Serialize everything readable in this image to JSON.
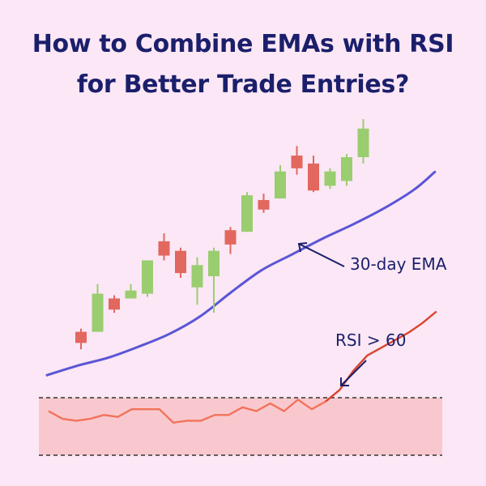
{
  "title": {
    "line1": "How to Combine EMAs with RSI",
    "line2": "for Better Trade Entries?"
  },
  "colors": {
    "background": "#fbe7f5",
    "title": "#1b1f6b",
    "bullish": "#9acd6f",
    "bearish": "#e2675e",
    "ema": "#5b55d6",
    "rsi_below": "#f2735a",
    "rsi_above": "#d9442c",
    "rsi_band": "#f9c8cf",
    "threshold_line": "#333333",
    "annotation": "#1b1f6b"
  },
  "annotations": {
    "ema_label": "30-day EMA",
    "rsi_label": "RSI > 60"
  },
  "chart_data": [
    {
      "type": "candlestick",
      "candles": [
        {
          "open": 16,
          "close": 9,
          "high": 18,
          "low": 5
        },
        {
          "open": 16,
          "close": 40,
          "high": 46,
          "low": 16
        },
        {
          "open": 37,
          "close": 30,
          "high": 39,
          "low": 28
        },
        {
          "open": 37,
          "close": 42,
          "high": 46,
          "low": 37
        },
        {
          "open": 40,
          "close": 61,
          "high": 61,
          "low": 38
        },
        {
          "open": 73,
          "close": 64,
          "high": 78,
          "low": 61
        },
        {
          "open": 67,
          "close": 53,
          "high": 69,
          "low": 50
        },
        {
          "open": 44,
          "close": 58,
          "high": 63,
          "low": 33
        },
        {
          "open": 51,
          "close": 67,
          "high": 69,
          "low": 28
        },
        {
          "open": 80,
          "close": 71,
          "high": 82,
          "low": 65
        },
        {
          "open": 79,
          "close": 102,
          "high": 104,
          "low": 79
        },
        {
          "open": 99,
          "close": 93,
          "high": 103,
          "low": 91
        },
        {
          "open": 100,
          "close": 117,
          "high": 121,
          "low": 100
        },
        {
          "open": 127,
          "close": 119,
          "high": 133,
          "low": 115
        },
        {
          "open": 122,
          "close": 105,
          "high": 127,
          "low": 104
        },
        {
          "open": 108,
          "close": 117,
          "high": 119,
          "low": 106
        },
        {
          "open": 111,
          "close": 126,
          "high": 128,
          "low": 108
        },
        {
          "open": 126,
          "close": 144,
          "high": 150,
          "low": 122
        }
      ],
      "ema": [
        {
          "x": 0,
          "y": 4
        },
        {
          "x": 1.5,
          "y": 10
        },
        {
          "x": 3,
          "y": 15
        },
        {
          "x": 4.5,
          "y": 22
        },
        {
          "x": 6,
          "y": 30
        },
        {
          "x": 7.5,
          "y": 41
        },
        {
          "x": 9,
          "y": 56
        },
        {
          "x": 10.5,
          "y": 70
        },
        {
          "x": 12,
          "y": 80
        },
        {
          "x": 13.5,
          "y": 90
        },
        {
          "x": 15,
          "y": 99
        },
        {
          "x": 16.5,
          "y": 109
        },
        {
          "x": 18,
          "y": 121
        },
        {
          "x": 19,
          "y": 132
        }
      ]
    },
    {
      "type": "line",
      "series": [
        {
          "x": [
            0,
            1,
            2,
            3,
            4,
            5,
            6,
            7,
            8,
            9,
            10,
            11,
            12,
            13,
            14,
            15,
            16,
            17,
            18,
            19,
            20,
            21,
            22,
            23,
            24,
            25,
            26,
            27,
            28
          ],
          "values": [
            53,
            49,
            48,
            49,
            51,
            50,
            54,
            54,
            54,
            47,
            48,
            48,
            51,
            51,
            55,
            53,
            57,
            53,
            59,
            54,
            58,
            64,
            74,
            82,
            86,
            90,
            94,
            99,
            105
          ]
        }
      ],
      "thresholds": [
        60,
        30
      ],
      "ylim": [
        25,
        110
      ]
    }
  ]
}
